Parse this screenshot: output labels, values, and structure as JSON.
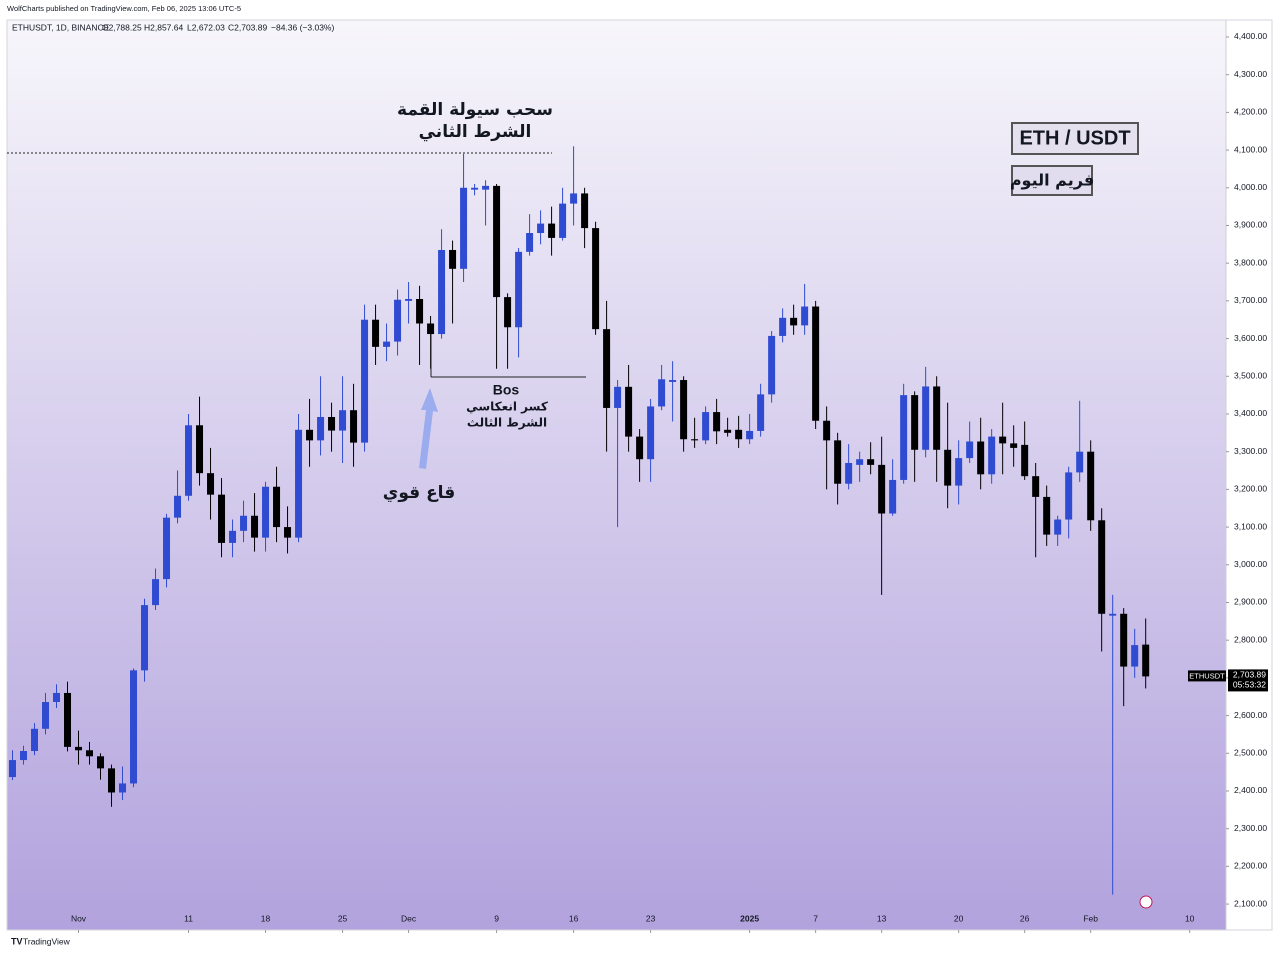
{
  "header": {
    "published": "WolfCharts published on TradingView.com, Feb 06, 2025 13:06 UTC-5",
    "symbol": "ETHUSDT, 1D, BINANCE",
    "open": "O2,788.25",
    "high": "H2,857.64",
    "low": "L2,672.03",
    "close": "C2,703.89",
    "change": "−84.36 (−3.03%)"
  },
  "chart_data": {
    "type": "candlestick",
    "up_color": "#2f4bd1",
    "down_color": "#000000",
    "grid": false,
    "xlim": [
      -0.5,
      110.3
    ],
    "xticks": [
      {
        "value": 6,
        "label": "Nov"
      },
      {
        "value": 16,
        "label": "11"
      },
      {
        "value": 23,
        "label": "18"
      },
      {
        "value": 30,
        "label": "25"
      },
      {
        "value": 36,
        "label": "Dec"
      },
      {
        "value": 44,
        "label": "9"
      },
      {
        "value": 51,
        "label": "16"
      },
      {
        "value": 58,
        "label": "23"
      },
      {
        "value": 67,
        "label": "2025"
      },
      {
        "value": 73,
        "label": "7"
      },
      {
        "value": 79,
        "label": "13"
      },
      {
        "value": 86,
        "label": "20"
      },
      {
        "value": 92,
        "label": "26"
      },
      {
        "value": 98,
        "label": "Feb"
      },
      {
        "value": 107,
        "label": "10"
      }
    ],
    "ylim": [
      2079,
      4445
    ],
    "yticks": [
      {
        "value": 2100,
        "label": "2,100.00"
      },
      {
        "value": 2200,
        "label": "2,200.00"
      },
      {
        "value": 2300,
        "label": "2,300.00"
      },
      {
        "value": 2400,
        "label": "2,400.00"
      },
      {
        "value": 2500,
        "label": "2,500.00"
      },
      {
        "value": 2600,
        "label": "2,600.00"
      },
      {
        "value": 2700,
        "label": "2,700.00"
      },
      {
        "value": 2800,
        "label": "2,800.00"
      },
      {
        "value": 2900,
        "label": "2,900.00"
      },
      {
        "value": 3000,
        "label": "3,000.00"
      },
      {
        "value": 3100,
        "label": "3,100.00"
      },
      {
        "value": 3200,
        "label": "3,200.00"
      },
      {
        "value": 3300,
        "label": "3,300.00"
      },
      {
        "value": 3400,
        "label": "3,400.00"
      },
      {
        "value": 3500,
        "label": "3,500.00"
      },
      {
        "value": 3600,
        "label": "3,600.00"
      },
      {
        "value": 3700,
        "label": "3,700.00"
      },
      {
        "value": 3800,
        "label": "3,800.00"
      },
      {
        "value": 3900,
        "label": "3,900.00"
      },
      {
        "value": 4000,
        "label": "4,000.00"
      },
      {
        "value": 4100,
        "label": "4,100.00"
      },
      {
        "value": 4200,
        "label": "4,200.00"
      },
      {
        "value": 4300,
        "label": "4,300.00"
      },
      {
        "value": 4400,
        "label": "4,400.00"
      }
    ],
    "open": [
      2437,
      2482,
      2506,
      2565,
      2636,
      2660,
      2517,
      2508,
      2492,
      2460,
      2396,
      2420,
      2720,
      2893,
      2962,
      3125,
      3183,
      3370,
      3243,
      3186,
      3058,
      3090,
      3130,
      3072,
      3207,
      3100,
      3072,
      3358,
      3330,
      3392,
      3356,
      3410,
      3324,
      3650,
      3578,
      3592,
      3700,
      3705,
      3640,
      3612,
      3835,
      3785,
      3995,
      3995,
      4005,
      3710,
      3630,
      3830,
      3880,
      3905,
      3867,
      3958,
      3985,
      3893,
      3625,
      3416,
      3472,
      3340,
      3280,
      3420,
      3485,
      3490,
      3333,
      3330,
      3405,
      3358,
      3358,
      3333,
      3355,
      3452,
      3607,
      3655,
      3635,
      3685,
      3382,
      3330,
      3215,
      3265,
      3280,
      3265,
      3136,
      3225,
      3450,
      3305,
      3473,
      3305,
      3210,
      3283,
      3327,
      3240,
      3340,
      3322,
      3318,
      3235,
      3180,
      3080,
      3120,
      3245,
      3300,
      3118,
      2865,
      2870,
      2730,
      2788.25
    ],
    "high": [
      2508,
      2520,
      2580,
      2660,
      2683,
      2690,
      2560,
      2530,
      2500,
      2470,
      2465,
      2725,
      2910,
      2990,
      3135,
      3250,
      3400,
      3446,
      3310,
      3230,
      3120,
      3170,
      3190,
      3220,
      3260,
      3155,
      3400,
      3440,
      3500,
      3430,
      3500,
      3480,
      3690,
      3690,
      3640,
      3730,
      3750,
      3740,
      3660,
      3890,
      3860,
      4090,
      4010,
      4020,
      4010,
      3720,
      3840,
      3930,
      3940,
      3950,
      4000,
      4110,
      4000,
      3910,
      3700,
      3490,
      3530,
      3360,
      3440,
      3530,
      3540,
      3500,
      3390,
      3420,
      3440,
      3390,
      3395,
      3400,
      3480,
      3620,
      3680,
      3690,
      3745,
      3700,
      3420,
      3350,
      3320,
      3300,
      3325,
      3340,
      3280,
      3480,
      3460,
      3525,
      3500,
      3430,
      3330,
      3380,
      3390,
      3360,
      3430,
      3370,
      3380,
      3270,
      3210,
      3130,
      3260,
      3435,
      3330,
      3150,
      2920,
      2885,
      2830,
      2857.64
    ],
    "low": [
      2429,
      2470,
      2495,
      2550,
      2620,
      2505,
      2470,
      2470,
      2430,
      2358,
      2376,
      2410,
      2690,
      2880,
      2940,
      3110,
      3170,
      3210,
      3120,
      3020,
      3020,
      3060,
      3035,
      3035,
      3060,
      3030,
      3060,
      3260,
      3290,
      3300,
      3270,
      3260,
      3300,
      3530,
      3540,
      3555,
      3640,
      3530,
      3520,
      3600,
      3640,
      3750,
      3980,
      3900,
      3520,
      3520,
      3550,
      3820,
      3850,
      3820,
      3860,
      3900,
      3840,
      3610,
      3300,
      3100,
      3300,
      3220,
      3220,
      3410,
      3380,
      3300,
      3310,
      3320,
      3320,
      3340,
      3310,
      3320,
      3340,
      3430,
      3590,
      3610,
      3610,
      3360,
      3200,
      3160,
      3200,
      3220,
      3240,
      2920,
      3130,
      3215,
      3220,
      3285,
      3220,
      3150,
      3160,
      3270,
      3200,
      3215,
      3240,
      3260,
      3225,
      3020,
      3050,
      3050,
      3070,
      3220,
      3090,
      2770,
      2125,
      2625,
      2700,
      2672.03
    ],
    "close": [
      2482,
      2506,
      2565,
      2636,
      2660,
      2517,
      2508,
      2492,
      2460,
      2396,
      2420,
      2720,
      2893,
      2962,
      3125,
      3183,
      3370,
      3243,
      3186,
      3058,
      3090,
      3130,
      3072,
      3207,
      3100,
      3072,
      3358,
      3330,
      3392,
      3356,
      3410,
      3324,
      3650,
      3578,
      3592,
      3703,
      3705,
      3640,
      3612,
      3835,
      3785,
      4000,
      4000,
      4005,
      3710,
      3630,
      3830,
      3880,
      3905,
      3867,
      3958,
      3985,
      3893,
      3625,
      3416,
      3472,
      3340,
      3280,
      3420,
      3492,
      3490,
      3333,
      3330,
      3405,
      3354,
      3350,
      3333,
      3355,
      3452,
      3607,
      3655,
      3635,
      3685,
      3382,
      3330,
      3215,
      3270,
      3280,
      3265,
      3136,
      3225,
      3450,
      3305,
      3473,
      3305,
      3210,
      3283,
      3327,
      3240,
      3340,
      3322,
      3310,
      3235,
      3180,
      3080,
      3120,
      3245,
      3300,
      3118,
      2870,
      2870,
      2730,
      2787,
      2703.89
    ],
    "last_price": {
      "symbol": "ETHUSDT",
      "price": "2,703.89",
      "countdown": "05:53:32"
    },
    "annotations": {
      "liquidity": "سحب سيولة القمة",
      "condition2": "الشرط الثاني",
      "bos": "Bos",
      "reversal": "كسر انعكاسي",
      "condition3": "الشرط الثالث",
      "strong_bottom": "قاع قوي",
      "pair": "ETH / USDT",
      "timeframe": "فريم اليوم"
    }
  },
  "footer": {
    "brand": "TradingView"
  }
}
